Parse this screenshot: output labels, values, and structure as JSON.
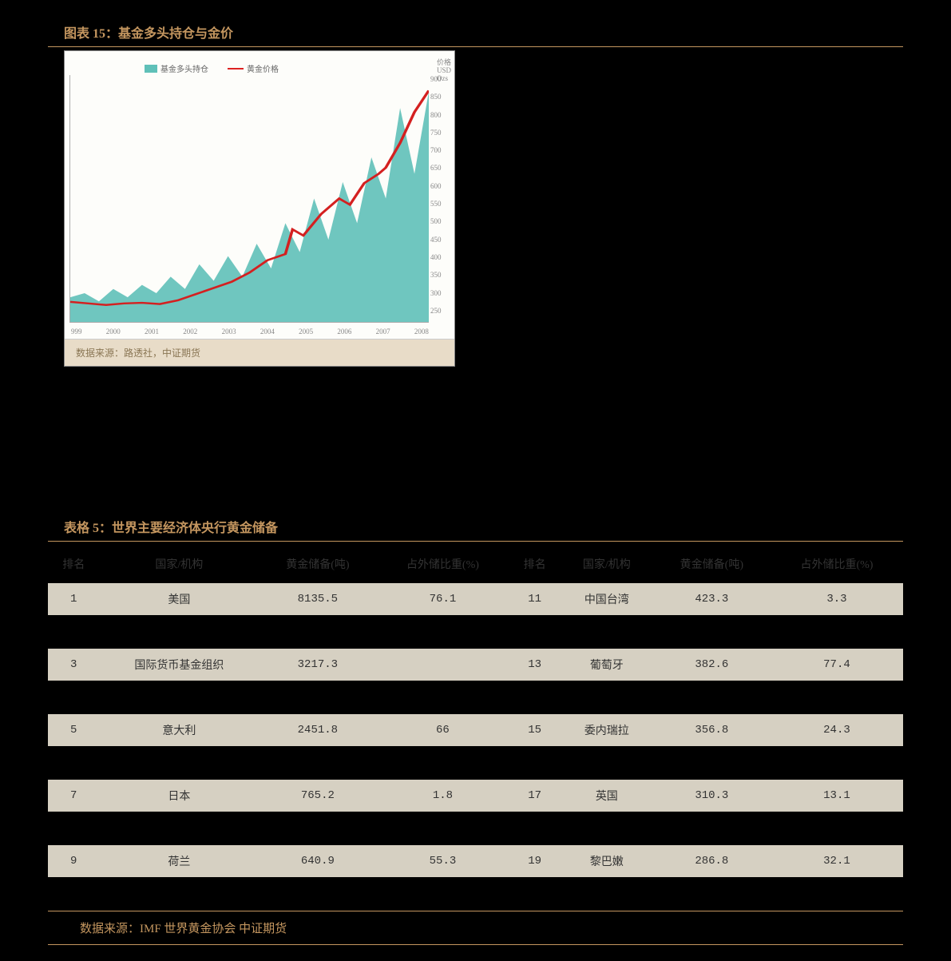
{
  "figure": {
    "title": "图表 15：基金多头持仓与金价",
    "source": "数据来源：路透社，中证期货",
    "type": "area+line",
    "legend": [
      {
        "label": "基金多头持仓",
        "kind": "area",
        "color": "#5fc0b8"
      },
      {
        "label": "黄金价格",
        "kind": "line",
        "color": "#d42020"
      }
    ],
    "x_labels": [
      "999",
      "2000",
      "2001",
      "2002",
      "2003",
      "2004",
      "2005",
      "2006",
      "2007",
      "2008"
    ],
    "y_right_label_lines": [
      "价格",
      "USD",
      "Ozs"
    ],
    "y_right_ticks": [
      "900",
      "850",
      "800",
      "750",
      "700",
      "650",
      "600",
      "550",
      "500",
      "450",
      "400",
      "350",
      "300",
      "250"
    ],
    "area_color": "#5fc0b8",
    "line_color": "#d42020",
    "background_color": "#fdfdfa",
    "area_points": [
      [
        0,
        30
      ],
      [
        4,
        35
      ],
      [
        8,
        25
      ],
      [
        12,
        40
      ],
      [
        16,
        30
      ],
      [
        20,
        45
      ],
      [
        24,
        35
      ],
      [
        28,
        55
      ],
      [
        32,
        40
      ],
      [
        36,
        70
      ],
      [
        40,
        50
      ],
      [
        44,
        80
      ],
      [
        48,
        55
      ],
      [
        52,
        95
      ],
      [
        56,
        65
      ],
      [
        60,
        120
      ],
      [
        64,
        85
      ],
      [
        68,
        150
      ],
      [
        72,
        100
      ],
      [
        76,
        170
      ],
      [
        80,
        120
      ],
      [
        84,
        200
      ],
      [
        88,
        150
      ],
      [
        92,
        260
      ],
      [
        96,
        180
      ],
      [
        100,
        280
      ]
    ],
    "line_points": [
      [
        0,
        265
      ],
      [
        5,
        260
      ],
      [
        10,
        255
      ],
      [
        15,
        260
      ],
      [
        20,
        262
      ],
      [
        25,
        258
      ],
      [
        30,
        270
      ],
      [
        35,
        290
      ],
      [
        40,
        310
      ],
      [
        45,
        330
      ],
      [
        50,
        360
      ],
      [
        55,
        400
      ],
      [
        60,
        420
      ],
      [
        62,
        500
      ],
      [
        65,
        480
      ],
      [
        70,
        550
      ],
      [
        75,
        600
      ],
      [
        78,
        580
      ],
      [
        82,
        650
      ],
      [
        86,
        680
      ],
      [
        88,
        700
      ],
      [
        92,
        780
      ],
      [
        96,
        880
      ],
      [
        100,
        950
      ]
    ],
    "y_domain": [
      200,
      1000
    ]
  },
  "table": {
    "title": "表格 5：世界主要经济体央行黄金储备",
    "source": "数据来源：IMF 世界黄金协会 中证期货",
    "columns_left": [
      "排名",
      "国家/机构",
      "黄金储备(吨)",
      "占外储比重(%)"
    ],
    "columns_right": [
      "排名",
      "国家/机构",
      "黄金储备(吨)",
      "占外储比重(%)"
    ],
    "rows": [
      {
        "band": "odd",
        "l": [
          "1",
          "美国",
          "8135.5",
          "76.1"
        ],
        "r": [
          "11",
          "中国台湾",
          "423.3",
          "3.3"
        ]
      },
      {
        "band": "even",
        "l": [
          "",
          "",
          "",
          ""
        ],
        "r": [
          "",
          "",
          "",
          ""
        ]
      },
      {
        "band": "odd",
        "l": [
          "3",
          "国际货币基金组织",
          "3217.3",
          ""
        ],
        "r": [
          "13",
          "葡萄牙",
          "382.6",
          "77.4"
        ]
      },
      {
        "band": "even",
        "l": [
          "",
          "",
          "",
          ""
        ],
        "r": [
          "",
          "",
          "",
          ""
        ]
      },
      {
        "band": "odd",
        "l": [
          "5",
          "意大利",
          "2451.8",
          "66"
        ],
        "r": [
          "15",
          "委内瑞拉",
          "356.8",
          "24.3"
        ]
      },
      {
        "band": "even",
        "l": [
          "",
          "",
          "",
          ""
        ],
        "r": [
          "",
          "",
          "",
          ""
        ]
      },
      {
        "band": "odd",
        "l": [
          "7",
          "日本",
          "765.2",
          "1.8"
        ],
        "r": [
          "17",
          "英国",
          "310.3",
          "13.1"
        ]
      },
      {
        "band": "even",
        "l": [
          "",
          "",
          "",
          ""
        ],
        "r": [
          "",
          "",
          "",
          ""
        ]
      },
      {
        "band": "odd",
        "l": [
          "9",
          "荷兰",
          "640.9",
          "55.3"
        ],
        "r": [
          "19",
          "黎巴嫩",
          "286.8",
          "32.1"
        ]
      },
      {
        "band": "even",
        "l": [
          "",
          "",
          "",
          ""
        ],
        "r": [
          "",
          "",
          "",
          ""
        ]
      }
    ]
  }
}
